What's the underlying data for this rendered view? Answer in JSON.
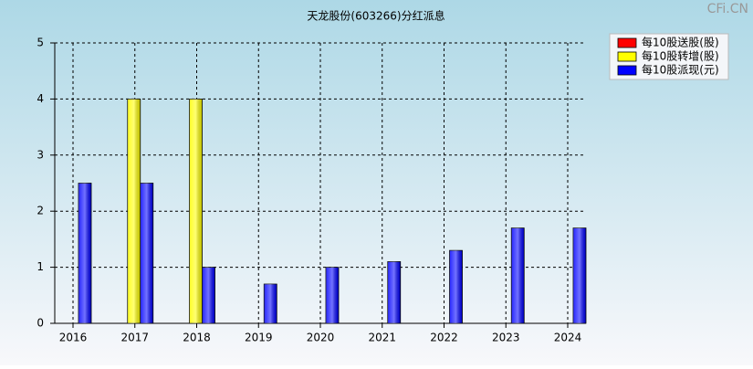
{
  "chart_data": {
    "type": "bar",
    "title": "天龙股份(603266)分红派息",
    "watermark": "CFi.CN",
    "categories": [
      "2016",
      "2017",
      "2018",
      "2019",
      "2020",
      "2021",
      "2022",
      "2023",
      "2024"
    ],
    "series": [
      {
        "name": "每10股送股(股)",
        "color": "#ff0000",
        "values": [
          0,
          0,
          0,
          0,
          0,
          0,
          0,
          0,
          0
        ]
      },
      {
        "name": "每10股转增(股)",
        "color": "#ffff00",
        "values": [
          0,
          4,
          4,
          0,
          0,
          0,
          0,
          0,
          0
        ]
      },
      {
        "name": "每10股派现(元)",
        "color": "#0000ff",
        "values": [
          2.5,
          2.5,
          1,
          0.7,
          1,
          1.1,
          1.3,
          1.7,
          1.7
        ]
      }
    ],
    "ylim": [
      0,
      5
    ],
    "yticks": [
      0,
      1,
      2,
      3,
      4,
      5
    ],
    "grid": true,
    "legend": "top-right"
  }
}
